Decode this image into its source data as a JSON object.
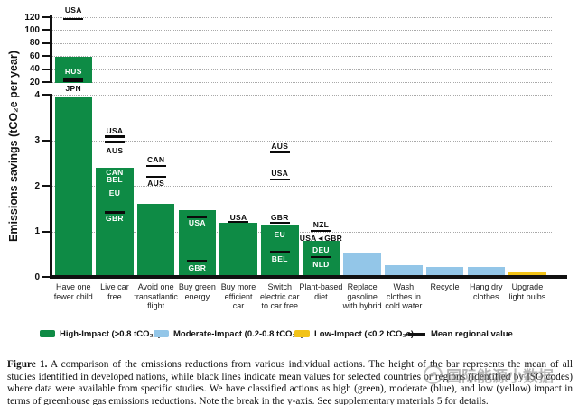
{
  "figure": {
    "caption_label": "Figure 1.",
    "caption_text": "A comparison of the emissions reductions from various individual actions. The height of the bar represents the mean of all studies identified in developed nations, while black lines indicate mean values for selected countries or regions (identified by ISO codes) where data were available from specific studies. We have classified actions as high (green), moderate (blue), and low (yellow) impact in terms of greenhouse gas emissions reductions. Note the break in the y-axis. See supplementary materials 5 for details."
  },
  "watermark": {
    "text": "国际能源小数据"
  },
  "legend": [
    {
      "label": "High-Impact (>0.8 tCO₂e)",
      "color": "#0E8B45",
      "type": "swatch"
    },
    {
      "label": "Moderate-Impact (0.2-0.8 tCO₂e)",
      "color": "#93C6E8",
      "type": "swatch"
    },
    {
      "label": "Low-Impact (<0.2 tCO₂e)",
      "color": "#F2C318",
      "type": "swatch"
    },
    {
      "label": "Mean regional value",
      "color": "#111111",
      "type": "line"
    }
  ],
  "chart_data": {
    "type": "bar",
    "title": "",
    "xlabel": "",
    "ylabel": "Emissions savings (tCO₂e per year)",
    "y_axis_break": true,
    "grid": "dotted horizontal",
    "legend_position": "bottom",
    "top_axis": {
      "range": [
        20,
        120
      ],
      "ticks": [
        120,
        100,
        80,
        60,
        40,
        20
      ]
    },
    "bottom_axis": {
      "range": [
        0,
        4
      ],
      "ticks": [
        4,
        3,
        2,
        1,
        0
      ]
    },
    "categories": [
      "Have one fewer child",
      "Live car free",
      "Avoid one transatlantic flight",
      "Buy green energy",
      "Buy more efficient car",
      "Switch electric car to car free",
      "Plant-based diet",
      "Replace gasoline with hybrid",
      "Wash clothes in cold water",
      "Recycle",
      "Hang dry clothes",
      "Upgrade light bulbs"
    ],
    "label_lines": [
      [
        "Have one",
        "fewer child"
      ],
      [
        "Live car",
        "free"
      ],
      [
        "Avoid one",
        "transatlantic",
        "flight"
      ],
      [
        "Buy green",
        "energy"
      ],
      [
        "Buy more",
        "efficient",
        "car"
      ],
      [
        "Switch",
        "electric car",
        "to car free"
      ],
      [
        "Plant-based",
        "diet"
      ],
      [
        "Replace",
        "gasoline",
        "with hybrid"
      ],
      [
        "Wash",
        "clothes in",
        "cold water"
      ],
      [
        "Recycle"
      ],
      [
        "Hang dry",
        "clothes"
      ],
      [
        "Upgrade",
        "light bulbs"
      ]
    ],
    "values": [
      58.6,
      2.4,
      1.6,
      1.47,
      1.19,
      1.15,
      0.8,
      0.52,
      0.25,
      0.21,
      0.21,
      0.1
    ],
    "impact": [
      "high",
      "high",
      "high",
      "high",
      "high",
      "high",
      "high",
      "moderate",
      "moderate",
      "moderate",
      "moderate",
      "low"
    ],
    "colors": {
      "high": "#0E8B45",
      "moderate": "#93C6E8",
      "low": "#F2C318",
      "mean_line": "#0a0a0a"
    },
    "mean_lines": [
      [
        {
          "code": "USA",
          "label": 131,
          "dash": 117.5,
          "color": "black",
          "scale": "top"
        },
        {
          "code": "RUS",
          "label": 37,
          "dash": 25,
          "color": "white",
          "scale": "top"
        },
        {
          "code": "JPN",
          "label": 10,
          "dash": 21.5,
          "color": "black",
          "scale": "top"
        }
      ],
      [
        {
          "code": "USA",
          "label": 3.2,
          "dash": 3.08,
          "color": "black"
        },
        {
          "code": "AUS",
          "label": 2.77,
          "dash": 2.97,
          "color": "black"
        },
        {
          "code": "CAN",
          "label": 2.3,
          "color": "white"
        },
        {
          "code": "BEL",
          "label": 2.14,
          "color": "white"
        },
        {
          "code": "EU",
          "label": 1.84,
          "color": "white"
        },
        {
          "code": "GBR",
          "label": 1.28,
          "dash": 1.42,
          "color": "white"
        }
      ],
      [
        {
          "code": "CAN",
          "label": 2.57,
          "dash": 2.44,
          "color": "black"
        },
        {
          "code": "AUS",
          "label": 2.05,
          "dash": 2.2,
          "color": "black"
        }
      ],
      [
        {
          "code": "USA",
          "label": 1.18,
          "dash": 1.32,
          "color": "white"
        },
        {
          "code": "GBR",
          "label": 0.2,
          "dash": 0.35,
          "color": "white"
        }
      ],
      [
        {
          "code": "USA",
          "label": 1.31,
          "dash": 1.21,
          "color": "black"
        }
      ],
      [
        {
          "code": "AUS",
          "label": 2.88,
          "dash": 2.74,
          "color": "black"
        },
        {
          "code": "USA",
          "label": 2.28,
          "dash": 2.14,
          "color": "black"
        },
        {
          "code": "GBR",
          "label": 1.3,
          "dash": 1.19,
          "color": "black"
        },
        {
          "code": "EU",
          "label": 0.94,
          "color": "white"
        },
        {
          "code": "BEL",
          "label": 0.4,
          "dash": 0.56,
          "color": "white"
        }
      ],
      [
        {
          "code": "NZL",
          "label": 1.14,
          "dash": 1.01,
          "color": "black"
        },
        {
          "code": "USA◄GBR",
          "label": 0.86,
          "color": "black"
        },
        {
          "code": "DEU",
          "label": 0.6,
          "color": "white"
        },
        {
          "code": "NLD",
          "label": 0.28,
          "dash": 0.44,
          "color": "white"
        }
      ],
      [],
      [],
      [],
      [],
      []
    ]
  }
}
